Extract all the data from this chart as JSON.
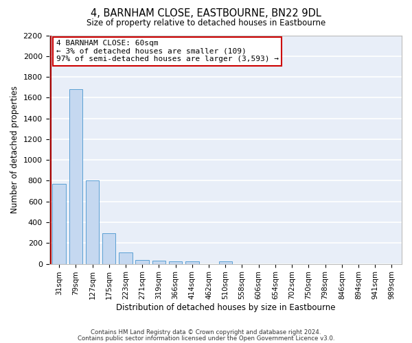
{
  "title": "4, BARNHAM CLOSE, EASTBOURNE, BN22 9DL",
  "subtitle": "Size of property relative to detached houses in Eastbourne",
  "xlabel": "Distribution of detached houses by size in Eastbourne",
  "ylabel": "Number of detached properties",
  "categories": [
    "31sqm",
    "79sqm",
    "127sqm",
    "175sqm",
    "223sqm",
    "271sqm",
    "319sqm",
    "366sqm",
    "414sqm",
    "462sqm",
    "510sqm",
    "558sqm",
    "606sqm",
    "654sqm",
    "702sqm",
    "750sqm",
    "798sqm",
    "846sqm",
    "894sqm",
    "941sqm",
    "989sqm"
  ],
  "values": [
    770,
    1680,
    800,
    295,
    110,
    40,
    28,
    25,
    22,
    0,
    25,
    0,
    0,
    0,
    0,
    0,
    0,
    0,
    0,
    0,
    0
  ],
  "bar_color": "#c5d8f0",
  "bar_edge_color": "#5a9fd4",
  "background_color": "#e8eef8",
  "grid_color": "#ffffff",
  "annotation_text": "4 BARNHAM CLOSE: 60sqm\n← 3% of detached houses are smaller (109)\n97% of semi-detached houses are larger (3,593) →",
  "annotation_box_color": "#ffffff",
  "annotation_box_edge_color": "#cc0000",
  "ylim": [
    0,
    2200
  ],
  "yticks": [
    0,
    200,
    400,
    600,
    800,
    1000,
    1200,
    1400,
    1600,
    1800,
    2000,
    2200
  ],
  "footer_line1": "Contains HM Land Registry data © Crown copyright and database right 2024.",
  "footer_line2": "Contains public sector information licensed under the Open Government Licence v3.0.",
  "red_line_color": "#aa0000"
}
